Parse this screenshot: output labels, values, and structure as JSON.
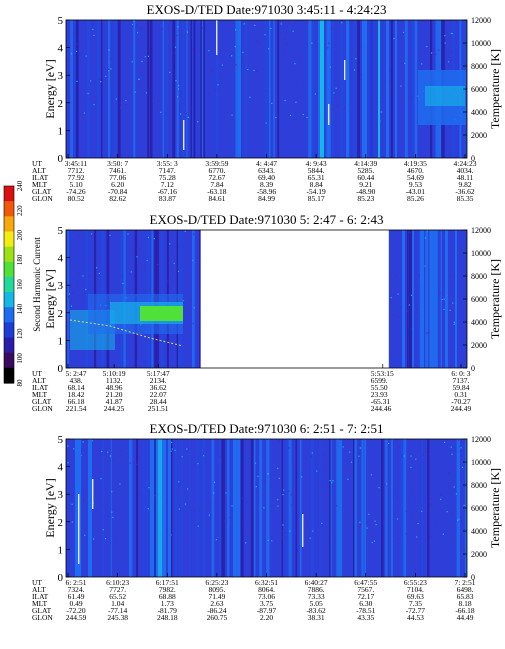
{
  "colorbar": {
    "label": "Second Harmonic Current",
    "ticks": [
      "240",
      "220",
      "200",
      "180",
      "160",
      "140",
      "120",
      "100",
      "80"
    ],
    "colors": [
      "#000000",
      "#3b0a5e",
      "#2a1ea8",
      "#1e3cd8",
      "#1f6cf0",
      "#16b7e6",
      "#22d89a",
      "#4fe03a",
      "#9ee016",
      "#f2ec10",
      "#f8a80c",
      "#f25808",
      "#d81010"
    ]
  },
  "chart_data": [
    {
      "type": "heatmap",
      "title": "EXOS-D/TED   Date:971030  3:45:11 - 4:24:23",
      "ylabel": "Energy [eV]",
      "ylabel_right": "Temperature [K]",
      "ylim": [
        0,
        5
      ],
      "ylim_right": [
        0,
        12000
      ],
      "yticks": [
        "0",
        "1",
        "2",
        "3",
        "4",
        "5"
      ],
      "yticks_right": [
        "0",
        "2000",
        "4000",
        "6000",
        "8000",
        "10000",
        "12000"
      ],
      "data_extent": [
        0,
        1
      ],
      "row_labels": [
        "UT",
        "ALT",
        "ILAT",
        "MLT",
        "GLAT",
        "GLON"
      ],
      "columns": [
        [
          "3:45:11",
          "7712.",
          "77.92",
          "5.10",
          "-74.26",
          "80.52"
        ],
        [
          "3:50: 7",
          "7461.",
          "77.06",
          "6.20",
          "-70.84",
          "82.62"
        ],
        [
          "3:55: 3",
          "7147.",
          "75.28",
          "7.12",
          "-67.16",
          "83.87"
        ],
        [
          "3:59:59",
          "6770.",
          "72.67",
          "7.84",
          "-63.18",
          "84.61"
        ],
        [
          "4: 4:47",
          "6343.",
          "69.40",
          "8.39",
          "-58.96",
          "84.99"
        ],
        [
          "4: 9:43",
          "5844.",
          "65.31",
          "8.84",
          "-54.19",
          "85.17"
        ],
        [
          "4:14:39",
          "5285.",
          "60.44",
          "9.21",
          "-48.90",
          "85.23"
        ],
        [
          "4:19:35",
          "4670.",
          "54.69",
          "9.53",
          "-43.01",
          "85.26"
        ],
        [
          "4:24:23",
          "4034.",
          "48.11",
          "9.82",
          "-36.62",
          "85.35"
        ]
      ]
    },
    {
      "type": "heatmap",
      "title": "EXOS-D/TED   Date:971030  5: 2:47 - 6: 2:43",
      "ylabel": "Energy [eV]",
      "ylabel_right": "Temperature [K]",
      "ylim": [
        0,
        5
      ],
      "ylim_right": [
        0,
        12000
      ],
      "yticks": [
        "0",
        "1",
        "2",
        "3",
        "4",
        "5"
      ],
      "yticks_right": [
        "0",
        "2000",
        "4000",
        "6000",
        "8000",
        "10000",
        "12000"
      ],
      "data_extent": [
        [
          0,
          0.335
        ],
        [
          0.805,
          1
        ]
      ],
      "row_labels": [
        "UT",
        "ALT",
        "ILAT",
        "MLT",
        "GLAT",
        "GLON"
      ],
      "columns": [
        [
          "5: 2:47",
          "438.",
          "68.14",
          "18.42",
          "66.18",
          "221.54"
        ],
        [
          "5:10:19",
          "1132.",
          "48.96",
          "21.20",
          "41.87",
          "244.25"
        ],
        [
          "5:17:47",
          "2134.",
          "36.62",
          "22.07",
          "28.44",
          "251.51"
        ],
        [
          "5:53:15",
          "6599.",
          "55.50",
          "23.93",
          "-65.31",
          "244.46"
        ],
        [
          "6: 0: 3",
          "7137.",
          "59.84",
          "0.31",
          "-70.27",
          "244.49"
        ]
      ]
    },
    {
      "type": "heatmap",
      "title": "EXOS-D/TED   Date:971030  6: 2:51 - 7: 2:51",
      "ylabel": "Energy [eV]",
      "ylabel_right": "Temperature [K]",
      "ylim": [
        0,
        5
      ],
      "ylim_right": [
        0,
        12000
      ],
      "yticks": [
        "0",
        "1",
        "2",
        "3",
        "4",
        "5"
      ],
      "yticks_right": [
        "0",
        "2000",
        "4000",
        "6000",
        "8000",
        "10000",
        "12000"
      ],
      "data_extent": [
        0,
        1
      ],
      "row_labels": [
        "UT",
        "ALT",
        "ILAT",
        "MLT",
        "GLAT",
        "GLON"
      ],
      "columns": [
        [
          "6: 2:51",
          "7324.",
          "61.49",
          "0.49",
          "-72.20",
          "244.59"
        ],
        [
          "6:10:23",
          "7727.",
          "65.52",
          "1.04",
          "-77.14",
          "245.38"
        ],
        [
          "6:17:51",
          "7982.",
          "68.88",
          "1.73",
          "-81.79",
          "248.18"
        ],
        [
          "6:25:23",
          "8095.",
          "71.49",
          "2.63",
          "-86.24",
          "260.75"
        ],
        [
          "6:32:51",
          "8064.",
          "73.06",
          "3.75",
          "-87.97",
          "2.20"
        ],
        [
          "6:40:27",
          "7886.",
          "73.33",
          "5.05",
          "-83.62",
          "38.31"
        ],
        [
          "6:47:55",
          "7567.",
          "72.17",
          "6.30",
          "-78.51",
          "43.35"
        ],
        [
          "6:55:23",
          "7104.",
          "69.63",
          "7.35",
          "-72.77",
          "44.53"
        ],
        [
          "7: 2:51",
          "6498.",
          "65.83",
          "8.18",
          "-66.18",
          "44.49"
        ]
      ]
    }
  ]
}
